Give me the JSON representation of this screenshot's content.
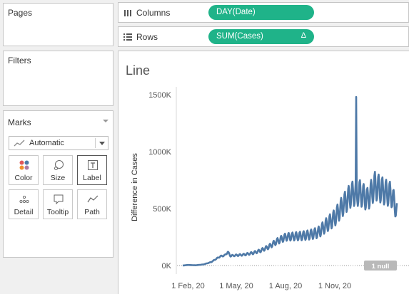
{
  "sidebar": {
    "pages_title": "Pages",
    "filters_title": "Filters",
    "marks": {
      "title": "Marks",
      "mark_type": "Automatic",
      "buttons": [
        {
          "label": "Color",
          "icon": "color-dots-icon"
        },
        {
          "label": "Size",
          "icon": "size-icon"
        },
        {
          "label": "Label",
          "icon": "label-t-icon"
        },
        {
          "label": "Detail",
          "icon": "detail-dots-icon"
        },
        {
          "label": "Tooltip",
          "icon": "tooltip-icon"
        },
        {
          "label": "Path",
          "icon": "path-icon"
        }
      ]
    }
  },
  "shelves": {
    "columns": {
      "label": "Columns",
      "pill": "DAY(Date)"
    },
    "rows": {
      "label": "Rows",
      "pill": "SUM(Cases)",
      "pill_suffix": "Δ"
    }
  },
  "sheet": {
    "title": "Line",
    "null_indicator": "1 null"
  },
  "colors": {
    "pill": "#1fb389",
    "line": "#4e79a7",
    "null_badge": "#b9b9b9"
  },
  "chart_data": {
    "type": "line",
    "title": "Line",
    "xlabel": "",
    "ylabel": "Difference in Cases",
    "x_ticks": [
      "1 Feb, 20",
      "1 May, 20",
      "1 Aug, 20",
      "1 Nov, 20"
    ],
    "y_ticks": [
      "0K",
      "500K",
      "1000K",
      "1500K"
    ],
    "ylim": [
      0,
      1500000
    ],
    "xlim": [
      "2020-01-22",
      "2021-02-25"
    ],
    "grid": false,
    "zero_line": "dotted",
    "series": [
      {
        "x": [
          "2020-01-22",
          "2020-02-01",
          "2020-02-15",
          "2020-03-01",
          "2020-03-15",
          "2020-03-25",
          "2020-04-01",
          "2020-04-10",
          "2020-04-15",
          "2020-04-20",
          "2020-05-01",
          "2020-05-15",
          "2020-06-01",
          "2020-06-15",
          "2020-07-01",
          "2020-07-15",
          "2020-08-01",
          "2020-08-15",
          "2020-09-01",
          "2020-09-15",
          "2020-10-01",
          "2020-10-15",
          "2020-11-01",
          "2020-11-15",
          "2020-12-01",
          "2020-12-10",
          "2020-12-11",
          "2020-12-12",
          "2020-12-15",
          "2021-01-01",
          "2021-01-15",
          "2021-02-01",
          "2021-02-15",
          "2021-02-25"
        ],
        "values": [
          0,
          5000,
          2000,
          10000,
          30000,
          60000,
          80000,
          90000,
          120000,
          85000,
          90000,
          95000,
          110000,
          130000,
          165000,
          210000,
          250000,
          255000,
          260000,
          270000,
          290000,
          350000,
          420000,
          520000,
          620000,
          640000,
          1480000,
          600000,
          650000,
          580000,
          700000,
          650000,
          620000,
          480000
        ]
      }
    ]
  }
}
